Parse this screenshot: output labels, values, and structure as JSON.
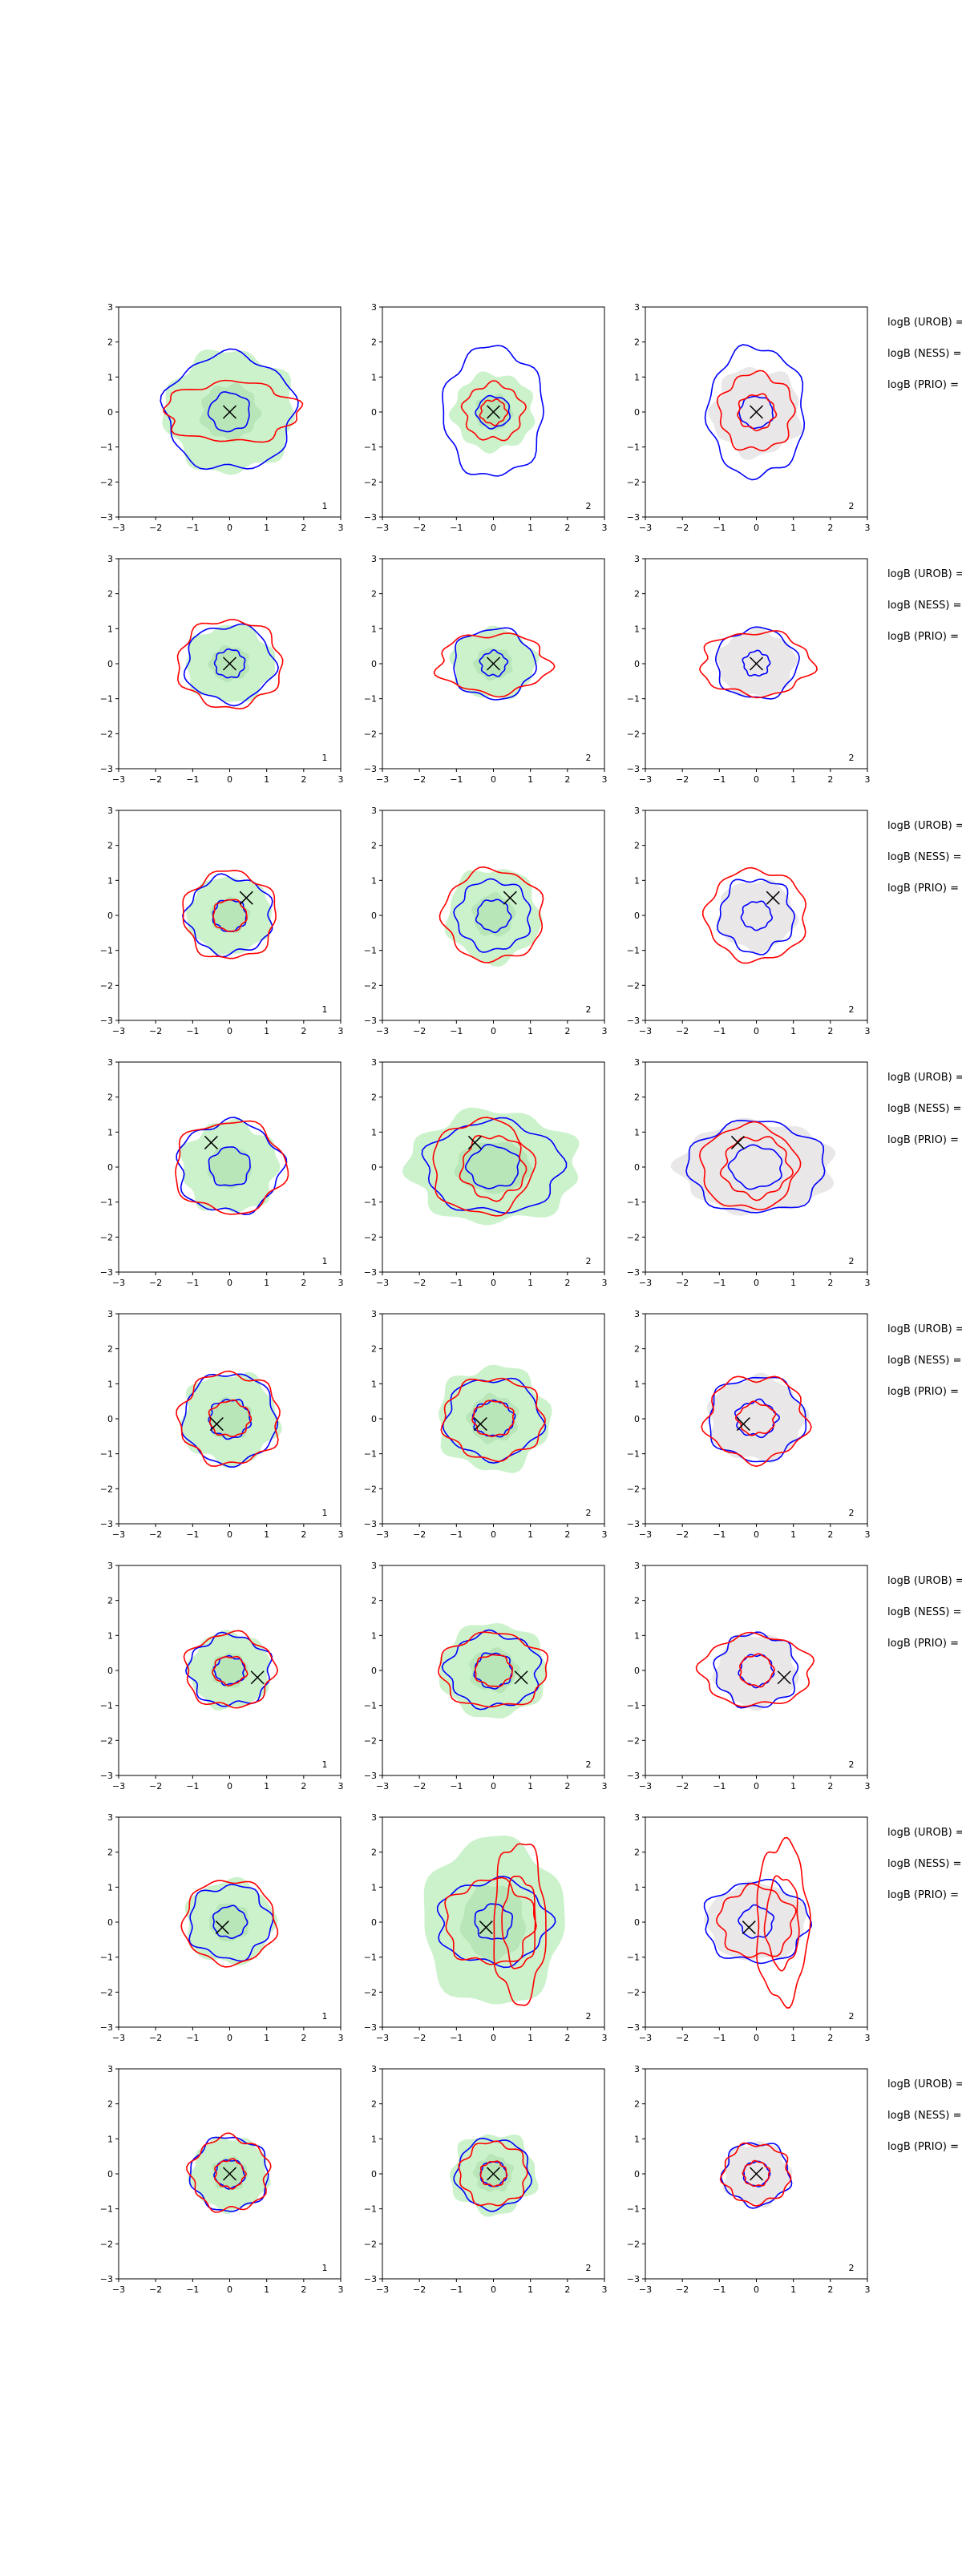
{
  "figure": {
    "colors": {
      "fill_green": "#ccf2cc",
      "fill_gray": "#e9e7e7",
      "contour_blue": "#0000ff",
      "contour_red": "#ff0000",
      "marker": "#000000"
    }
  },
  "chart_data": {
    "type": "contour",
    "xlim": [
      -3,
      3
    ],
    "ylim": [
      -3,
      3
    ],
    "xticks": [
      "−3",
      "−2",
      "−1",
      "0",
      "1",
      "2",
      "3"
    ],
    "yticks": [
      "−3",
      "−2",
      "−1",
      "0",
      "1",
      "2",
      "3"
    ],
    "grid": false,
    "logb_labels": [
      "logB (UROB) =",
      "logB (NESS) =",
      "logB (PRIO) ="
    ],
    "rows": [
      {
        "marker": [
          0.0,
          0.0
        ],
        "panels": [
          {
            "label": "1",
            "fill": "green",
            "fr": [
              1.75,
              1.75
            ],
            "blue": [
              [
                1.75,
                1.65,
                0
              ],
              [
                0.55,
                0.55,
                0
              ]
            ],
            "red": [
              [
                1.8,
                0.85,
                0.05
              ]
            ]
          },
          {
            "label": "2",
            "fill": "green",
            "fr": [
              1.1,
              1.1
            ],
            "blue": [
              [
                1.35,
                1.85,
                0
              ],
              [
                0.45,
                0.45,
                0
              ]
            ],
            "red": [
              [
                0.8,
                0.8,
                0
              ],
              [
                0.35,
                0.35,
                0
              ]
            ]
          },
          {
            "label": "2",
            "fill": "gray",
            "fr": [
              1.2,
              1.25
            ],
            "blue": [
              [
                1.3,
                1.85,
                0
              ],
              [
                0.45,
                0.45,
                0
              ]
            ],
            "red": [
              [
                1.0,
                1.1,
                0
              ],
              [
                0.5,
                0.5,
                0
              ]
            ]
          }
        ]
      },
      {
        "marker": [
          0.0,
          0.0
        ],
        "panels": [
          {
            "label": "1",
            "fill": "green",
            "fr": [
              1.2,
              1.1
            ],
            "blue": [
              [
                1.2,
                1.1,
                0
              ],
              [
                0.4,
                0.4,
                0
              ]
            ],
            "red": [
              [
                1.4,
                1.25,
                0
              ]
            ]
          },
          {
            "label": "2",
            "fill": "green",
            "fr": [
              1.15,
              1.0
            ],
            "blue": [
              [
                1.1,
                1.0,
                0
              ],
              [
                0.35,
                0.35,
                0
              ]
            ],
            "red": [
              [
                1.5,
                0.85,
                0
              ]
            ]
          },
          {
            "label": "2",
            "fill": "gray",
            "fr": [
              1.05,
              0.95
            ],
            "blue": [
              [
                1.1,
                1.0,
                0
              ],
              [
                0.35,
                0.35,
                0
              ]
            ],
            "red": [
              [
                1.5,
                0.9,
                0
              ]
            ]
          }
        ]
      },
      {
        "marker": [
          0.45,
          0.5
        ],
        "panels": [
          {
            "label": "1",
            "fill": "green",
            "fr": [
              1.15,
              1.1
            ],
            "blue": [
              [
                1.15,
                1.1,
                0
              ],
              [
                0.45,
                0.45,
                0
              ]
            ],
            "red": [
              [
                1.25,
                1.25,
                0
              ],
              [
                0.45,
                0.45,
                0
              ]
            ]
          },
          {
            "label": "2",
            "fill": "green",
            "fr": [
              1.25,
              1.35
            ],
            "blue": [
              [
                1.0,
                1.0,
                0
              ],
              [
                0.45,
                0.45,
                0
              ]
            ],
            "red": [
              [
                1.35,
                1.3,
                0
              ]
            ]
          },
          {
            "label": "2",
            "fill": "gray",
            "fr": [
              1.05,
              1.0
            ],
            "blue": [
              [
                1.0,
                1.05,
                0
              ],
              [
                0.4,
                0.4,
                0
              ]
            ],
            "red": [
              [
                1.35,
                1.3,
                0
              ]
            ]
          }
        ]
      },
      {
        "marker": [
          -0.5,
          0.7
        ],
        "panels": [
          {
            "label": "1",
            "fill": "green",
            "fr": [
              1.3,
              1.3
            ],
            "blue": [
              [
                1.4,
                1.3,
                0
              ],
              [
                0.55,
                0.55,
                0
              ]
            ],
            "red": [
              [
                1.5,
                1.3,
                0
              ]
            ]
          },
          {
            "label": "2",
            "fill": "green",
            "fr": [
              2.3,
              1.6
            ],
            "blue": [
              [
                1.85,
                1.3,
                0
              ],
              [
                0.7,
                0.6,
                0
              ]
            ],
            "red": [
              [
                1.35,
                1.35,
                -0.3
              ],
              [
                0.85,
                0.9,
                0
              ]
            ]
          },
          {
            "label": "2",
            "fill": "gray",
            "fr": [
              2.1,
              1.3
            ],
            "blue": [
              [
                1.85,
                1.3,
                0
              ],
              [
                0.7,
                0.6,
                0
              ]
            ],
            "red": [
              [
                1.3,
                1.2,
                -0.2
              ],
              [
                0.9,
                0.85,
                0
              ]
            ]
          }
        ]
      },
      {
        "marker": [
          -0.35,
          -0.15
        ],
        "panels": [
          {
            "label": "1",
            "fill": "green",
            "fr": [
              1.3,
              1.3
            ],
            "blue": [
              [
                1.25,
                1.3,
                0
              ],
              [
                0.55,
                0.55,
                0
              ]
            ],
            "red": [
              [
                1.35,
                1.3,
                0
              ],
              [
                0.55,
                0.5,
                0
              ]
            ]
          },
          {
            "label": "2",
            "fill": "green",
            "fr": [
              1.5,
              1.5
            ],
            "blue": [
              [
                1.3,
                1.15,
                0
              ],
              [
                0.55,
                0.5,
                0
              ]
            ],
            "red": [
              [
                1.35,
                1.15,
                0
              ],
              [
                0.55,
                0.5,
                0
              ]
            ]
          },
          {
            "label": "2",
            "fill": "gray",
            "fr": [
              1.3,
              1.2
            ],
            "blue": [
              [
                1.3,
                1.2,
                0
              ],
              [
                0.55,
                0.5,
                0
              ]
            ],
            "red": [
              [
                1.35,
                1.2,
                0
              ],
              [
                0.5,
                0.45,
                0
              ]
            ]
          }
        ]
      },
      {
        "marker": [
          0.75,
          -0.2
        ],
        "panels": [
          {
            "label": "1",
            "fill": "green",
            "fr": [
              1.1,
              1.1
            ],
            "blue": [
              [
                1.1,
                1.0,
                0
              ],
              [
                0.4,
                0.4,
                0
              ]
            ],
            "red": [
              [
                1.2,
                1.05,
                0
              ],
              [
                0.45,
                0.4,
                0
              ]
            ]
          },
          {
            "label": "2",
            "fill": "green",
            "fr": [
              1.45,
              1.35
            ],
            "blue": [
              [
                1.25,
                1.05,
                0
              ],
              [
                0.5,
                0.5,
                0
              ]
            ],
            "red": [
              [
                1.45,
                1.05,
                0
              ],
              [
                0.5,
                0.45,
                0
              ]
            ]
          },
          {
            "label": "2",
            "fill": "gray",
            "fr": [
              1.1,
              1.05
            ],
            "blue": [
              [
                1.1,
                1.05,
                0
              ],
              [
                0.45,
                0.45,
                0
              ]
            ],
            "red": [
              [
                1.5,
                1.0,
                0
              ],
              [
                0.45,
                0.45,
                0
              ]
            ]
          }
        ]
      },
      {
        "marker": [
          -0.2,
          -0.15
        ],
        "panels": [
          {
            "label": "1",
            "fill": "green",
            "fr": [
              1.2,
              1.2
            ],
            "blue": [
              [
                1.1,
                1.05,
                0
              ],
              [
                0.45,
                0.45,
                0
              ]
            ],
            "red": [
              [
                1.25,
                1.2,
                0
              ]
            ]
          },
          {
            "label": "2",
            "fill": "green",
            "fr": [
              1.9,
              2.4
            ],
            "blue": [
              [
                1.5,
                1.2,
                0
              ],
              [
                0.5,
                0.5,
                0
              ]
            ],
            "red": [
              [
                0.7,
                2.3,
                0.7
              ],
              [
                0.45,
                1.3,
                0.7
              ],
              [
                1.2,
                1.2,
                -0.1
              ]
            ]
          },
          {
            "label": "2",
            "fill": "gray",
            "fr": [
              1.35,
              1.1
            ],
            "blue": [
              [
                1.4,
                1.15,
                0
              ],
              [
                0.45,
                0.45,
                0
              ]
            ],
            "red": [
              [
                0.7,
                2.3,
                0.7
              ],
              [
                0.45,
                1.3,
                0.7
              ],
              [
                1.0,
                1.0,
                0
              ]
            ]
          }
        ]
      },
      {
        "marker": [
          0.0,
          0.0
        ],
        "panels": [
          {
            "label": "1",
            "fill": "green",
            "fr": [
              1.05,
              1.05
            ],
            "blue": [
              [
                1.05,
                1.05,
                0
              ],
              [
                0.4,
                0.4,
                0
              ]
            ],
            "red": [
              [
                1.05,
                1.05,
                0
              ],
              [
                0.4,
                0.4,
                0
              ]
            ]
          },
          {
            "label": "2",
            "fill": "green",
            "fr": [
              1.15,
              1.15
            ],
            "blue": [
              [
                1.0,
                1.0,
                0
              ],
              [
                0.35,
                0.35,
                0
              ]
            ],
            "red": [
              [
                0.9,
                0.9,
                0
              ],
              [
                0.35,
                0.35,
                0
              ]
            ]
          },
          {
            "label": "2",
            "fill": "gray",
            "fr": [
              0.9,
              0.9
            ],
            "blue": [
              [
                0.9,
                0.9,
                0
              ],
              [
                0.35,
                0.35,
                0
              ]
            ],
            "red": [
              [
                0.9,
                0.85,
                0
              ],
              [
                0.35,
                0.35,
                0
              ]
            ]
          }
        ]
      }
    ]
  }
}
